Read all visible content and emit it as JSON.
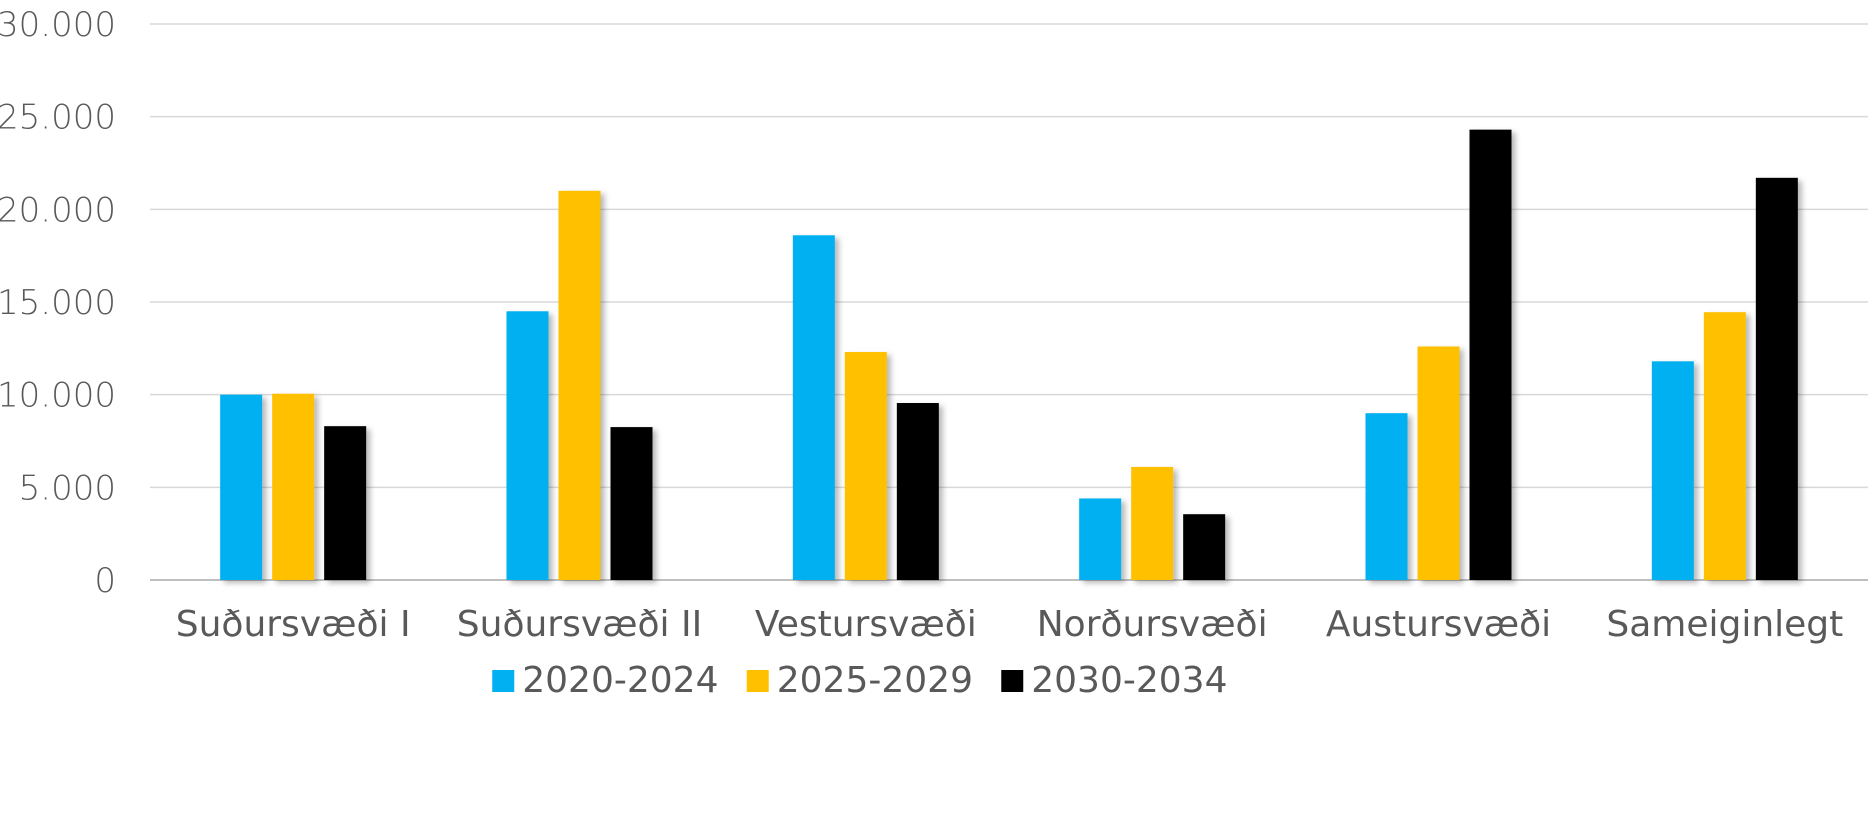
{
  "chart_data": {
    "type": "bar",
    "title": "",
    "xlabel": "",
    "ylabel": "",
    "categories": [
      "Suðursvæði I",
      "Suðursvæði II",
      "Vestursvæði",
      "Norðursvæði",
      "Austursvæði",
      "Sameiginlegt"
    ],
    "series": [
      {
        "name": "2020-2024",
        "color": "#00b0f0",
        "values": [
          10000,
          14500,
          18600,
          4400,
          9000,
          11800
        ]
      },
      {
        "name": "2025-2029",
        "color": "#ffc000",
        "values": [
          10050,
          21000,
          12300,
          6100,
          12600,
          14450
        ]
      },
      {
        "name": "2030-2034",
        "color": "#000000",
        "values": [
          8300,
          8250,
          9550,
          3550,
          24300,
          21700
        ]
      }
    ],
    "ylim": [
      0,
      30000
    ],
    "yticks": [
      0,
      5000,
      10000,
      15000,
      20000,
      25000,
      30000
    ],
    "ytick_labels": [
      "0",
      "5.000",
      "10.000",
      "15.000",
      "20.000",
      "25.000",
      "30.000"
    ],
    "grid": true,
    "legend_position": "bottom"
  }
}
